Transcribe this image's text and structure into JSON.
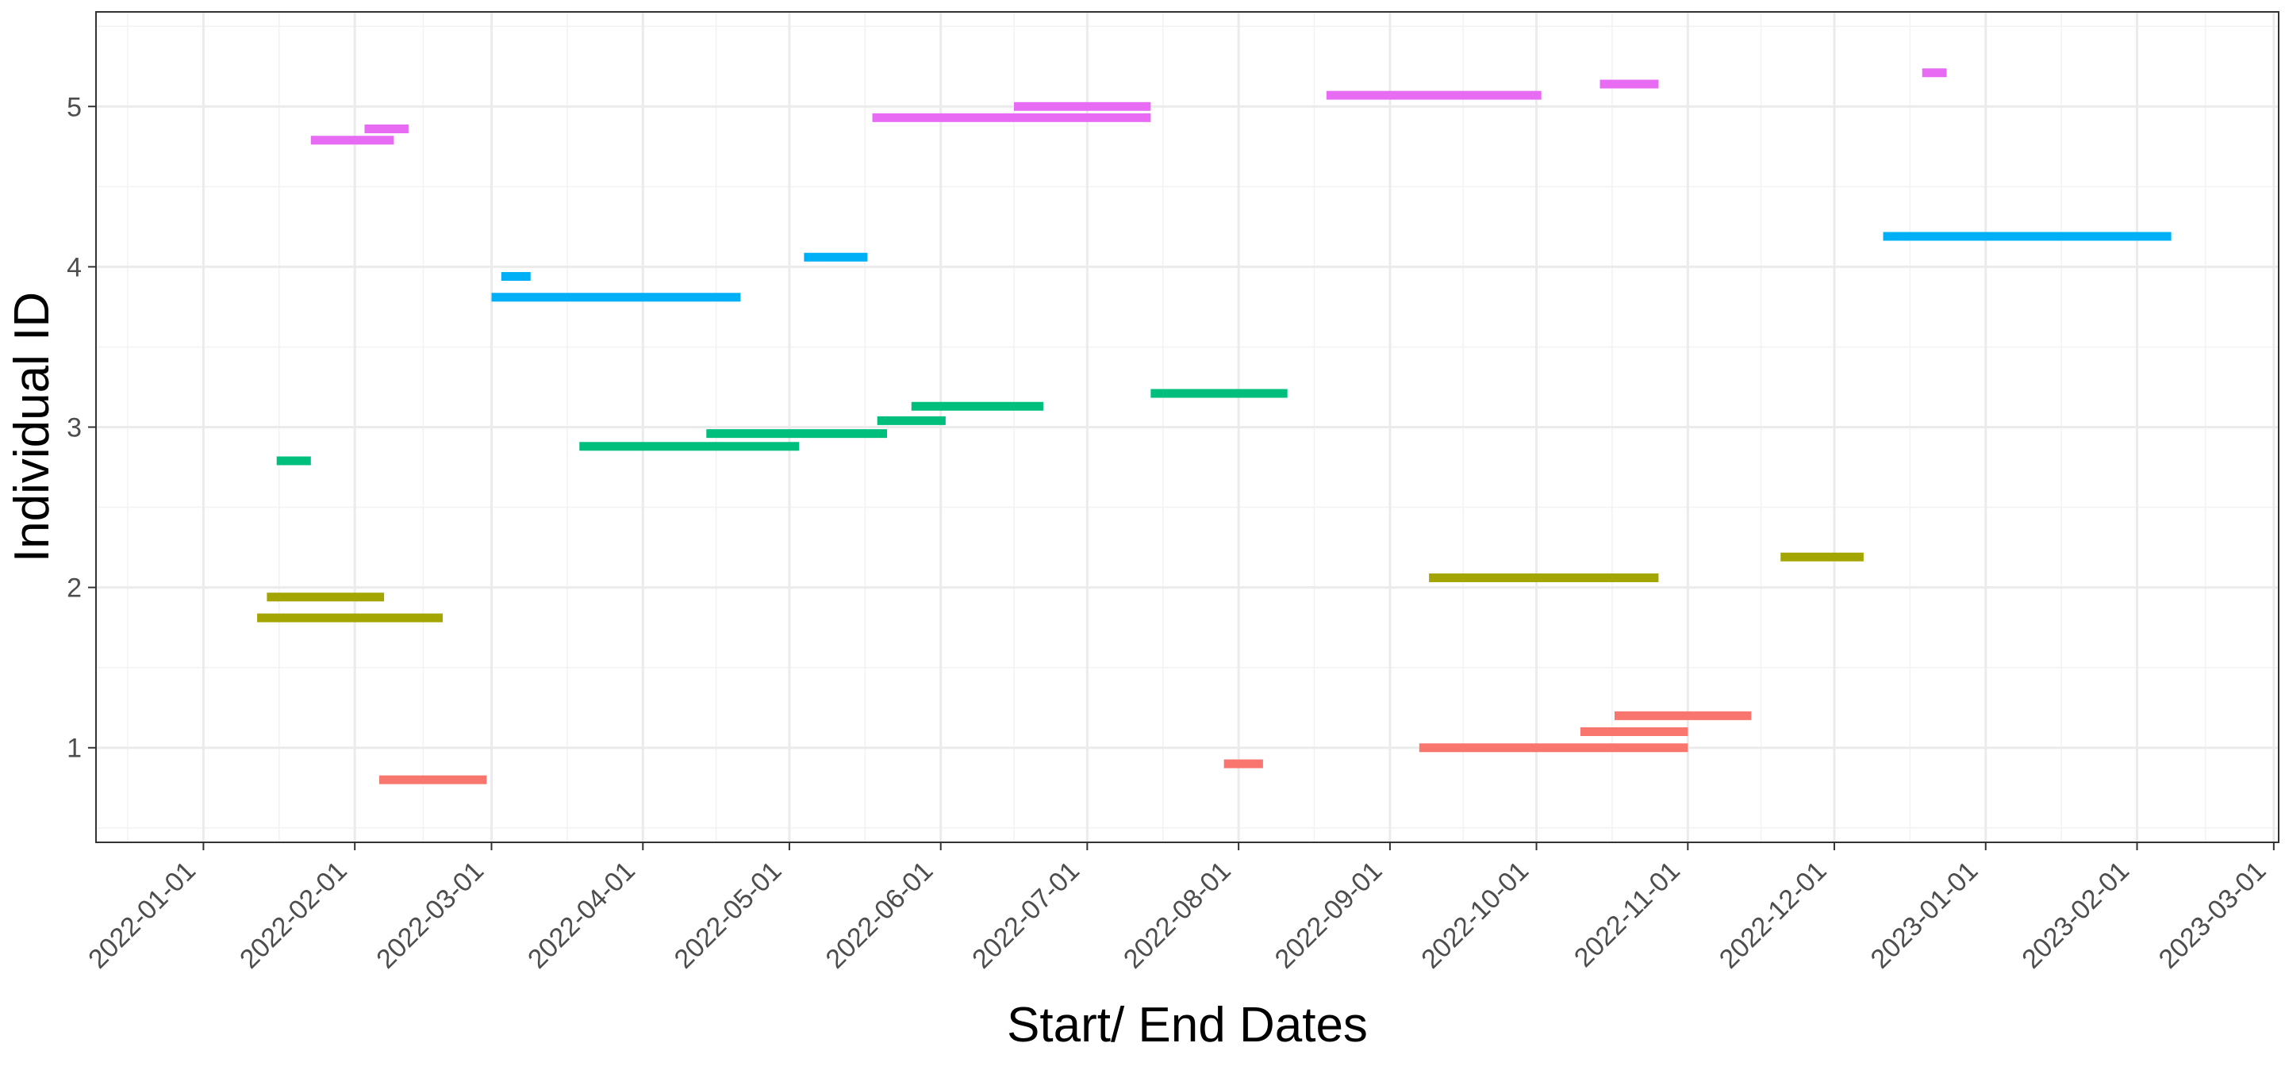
{
  "chart_data": {
    "type": "timeline",
    "xlabel": "Start/ End Dates",
    "ylabel": "Individual ID",
    "xlim": [
      "2021-12-10",
      "2023-03-02"
    ],
    "ylim": [
      0.41,
      5.59
    ],
    "x_ticks": [
      "2022-01-01",
      "2022-02-01",
      "2022-03-01",
      "2022-04-01",
      "2022-05-01",
      "2022-06-01",
      "2022-07-01",
      "2022-08-01",
      "2022-09-01",
      "2022-10-01",
      "2022-11-01",
      "2022-12-01",
      "2023-01-01",
      "2023-02-01",
      "2023-03-01"
    ],
    "y_ticks": [
      1,
      2,
      3,
      4,
      5
    ],
    "grid": true,
    "legend": "none",
    "series": [
      {
        "id": 1,
        "color": "#F8766D",
        "segments": [
          {
            "start": "2022-02-06",
            "end": "2022-02-28",
            "y": 0.8
          },
          {
            "start": "2022-07-29",
            "end": "2022-08-06",
            "y": 0.9
          },
          {
            "start": "2022-09-07",
            "end": "2022-11-01",
            "y": 1.0
          },
          {
            "start": "2022-10-10",
            "end": "2022-11-01",
            "y": 1.1
          },
          {
            "start": "2022-10-17",
            "end": "2022-11-14",
            "y": 1.2
          }
        ]
      },
      {
        "id": 2,
        "color": "#A3A500",
        "segments": [
          {
            "start": "2022-01-12",
            "end": "2022-02-19",
            "y": 1.81
          },
          {
            "start": "2022-01-14",
            "end": "2022-02-07",
            "y": 1.94
          },
          {
            "start": "2022-09-09",
            "end": "2022-10-26",
            "y": 2.06
          },
          {
            "start": "2022-11-20",
            "end": "2022-12-07",
            "y": 2.19
          }
        ]
      },
      {
        "id": 3,
        "color": "#00BF7D",
        "segments": [
          {
            "start": "2022-01-16",
            "end": "2022-01-23",
            "y": 2.79
          },
          {
            "start": "2022-03-19",
            "end": "2022-05-03",
            "y": 2.88
          },
          {
            "start": "2022-04-14",
            "end": "2022-05-21",
            "y": 2.96
          },
          {
            "start": "2022-05-19",
            "end": "2022-06-02",
            "y": 3.04
          },
          {
            "start": "2022-05-26",
            "end": "2022-06-22",
            "y": 3.13
          },
          {
            "start": "2022-07-14",
            "end": "2022-08-11",
            "y": 3.21
          }
        ]
      },
      {
        "id": 4,
        "color": "#00B0F6",
        "segments": [
          {
            "start": "2022-03-01",
            "end": "2022-04-21",
            "y": 3.81
          },
          {
            "start": "2022-03-03",
            "end": "2022-03-09",
            "y": 3.94
          },
          {
            "start": "2022-05-04",
            "end": "2022-05-17",
            "y": 4.06
          },
          {
            "start": "2022-12-11",
            "end": "2023-02-08",
            "y": 4.19
          }
        ]
      },
      {
        "id": 5,
        "color": "#E76BF3",
        "segments": [
          {
            "start": "2022-01-23",
            "end": "2022-02-09",
            "y": 4.79
          },
          {
            "start": "2022-02-03",
            "end": "2022-02-12",
            "y": 4.86
          },
          {
            "start": "2022-05-18",
            "end": "2022-07-14",
            "y": 4.93
          },
          {
            "start": "2022-06-16",
            "end": "2022-07-14",
            "y": 5.0
          },
          {
            "start": "2022-08-19",
            "end": "2022-10-02",
            "y": 5.07
          },
          {
            "start": "2022-10-14",
            "end": "2022-10-26",
            "y": 5.14
          },
          {
            "start": "2022-12-19",
            "end": "2022-12-24",
            "y": 5.21
          }
        ]
      }
    ]
  }
}
